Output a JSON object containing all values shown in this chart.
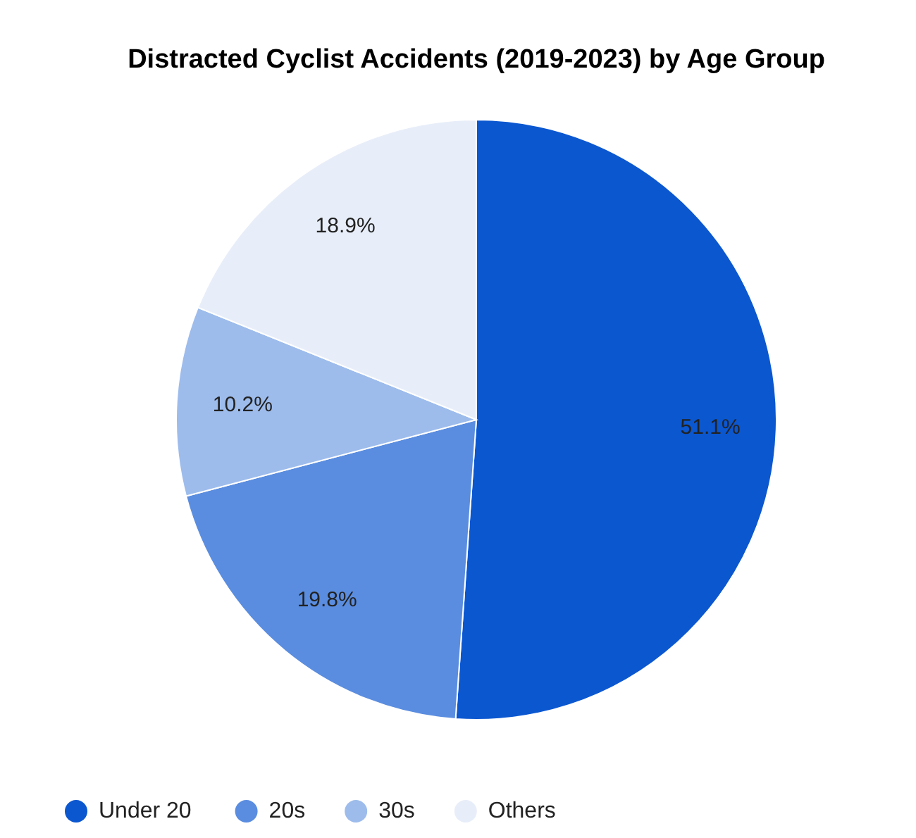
{
  "chart_data": {
    "type": "pie",
    "title": "Distracted Cyclist Accidents (2019-2023) by Age Group",
    "categories": [
      "Under 20",
      "20s",
      "30s",
      "Others"
    ],
    "values": [
      51.1,
      19.8,
      10.2,
      18.9
    ],
    "colors": [
      "#0b57d0",
      "#5a8de0",
      "#9dbcec",
      "#e8eef9"
    ],
    "value_labels": [
      "51.1%",
      "19.8%",
      "10.2%",
      "18.9%"
    ],
    "legend": "bottom left"
  }
}
